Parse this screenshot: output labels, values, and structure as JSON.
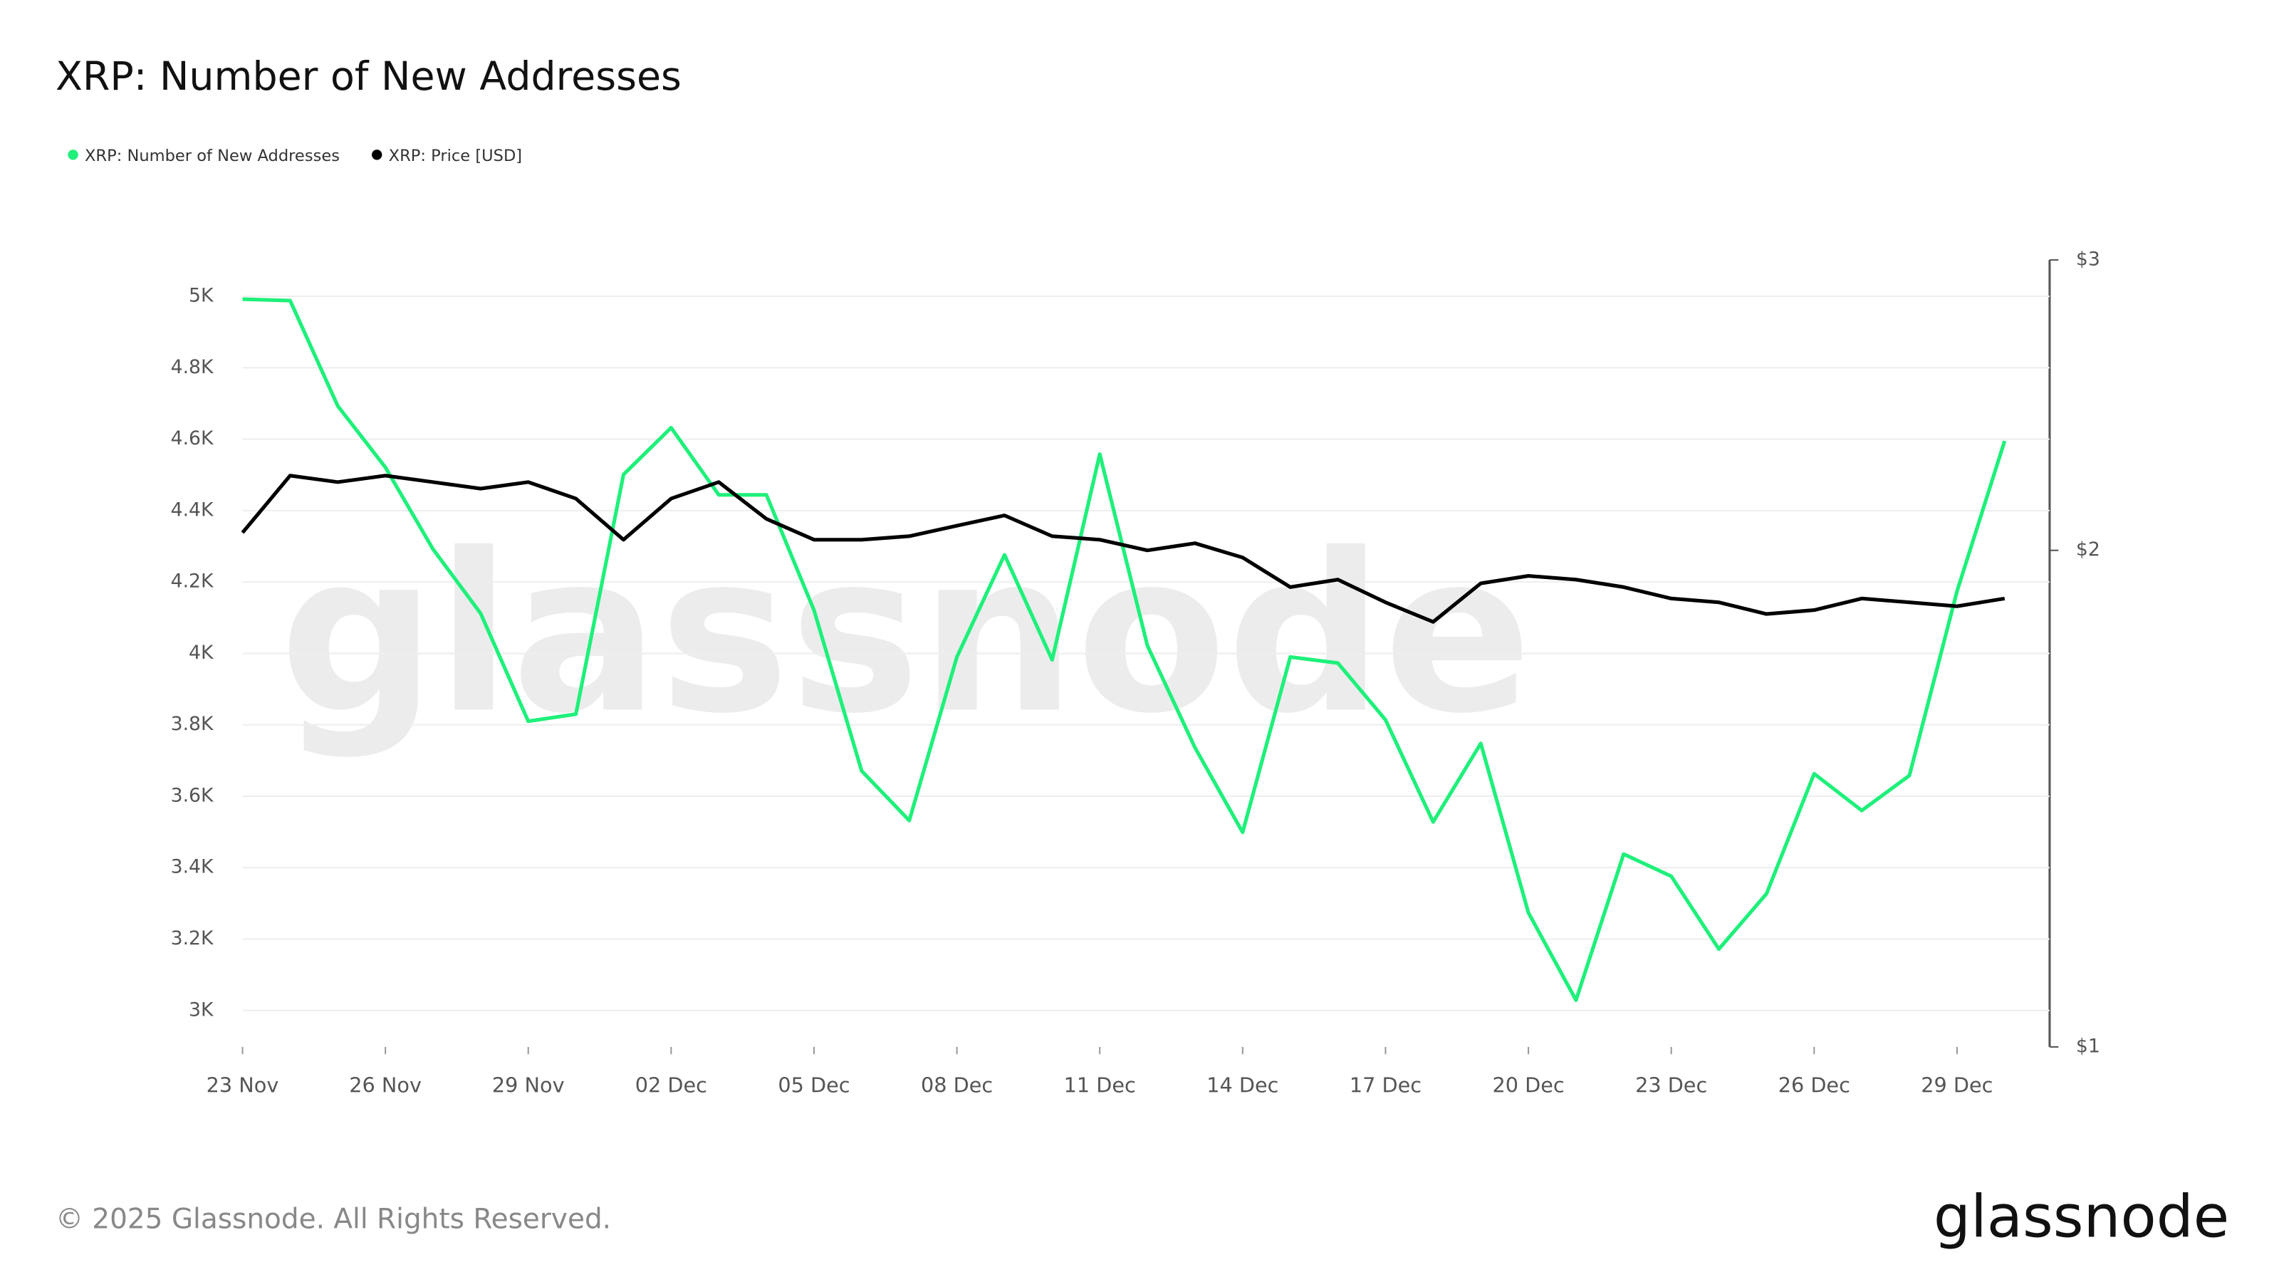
{
  "chart_data": {
    "type": "line",
    "title": "XRP: Number of New Addresses",
    "categories": [
      "23 Nov",
      null,
      null,
      "26 Nov",
      null,
      null,
      "29 Nov",
      null,
      null,
      "02 Dec",
      null,
      null,
      "05 Dec",
      null,
      null,
      "08 Dec",
      null,
      null,
      "11 Dec",
      null,
      null,
      "14 Dec",
      null,
      null,
      "17 Dec",
      null,
      null,
      "20 Dec",
      null,
      null,
      "23 Dec",
      null,
      null,
      "26 Dec",
      null,
      null,
      "29 Dec",
      null
    ],
    "series": [
      {
        "name": "XRP: Number of New Addresses",
        "color": "#1ef07a",
        "values": [
          4992,
          4988,
          4693,
          4521,
          4292,
          4112,
          3810,
          3830,
          4501,
          4632,
          4444,
          4444,
          4121,
          3671,
          3532,
          3990,
          4276,
          3982,
          4558,
          4022,
          3736,
          3499,
          3990,
          3973,
          3814,
          3528,
          3748,
          3274,
          3029,
          3438,
          3376,
          3172,
          3327,
          3663,
          3560,
          3658,
          4174,
          4595
        ]
      },
      {
        "name": "XRP: Price [USD]",
        "color": "#000000",
        "axis": "y2",
        "values": [
          2.05,
          2.22,
          2.2,
          2.22,
          2.2,
          2.18,
          2.2,
          2.15,
          2.03,
          2.15,
          2.2,
          2.09,
          2.03,
          2.03,
          2.04,
          2.07,
          2.1,
          2.04,
          2.03,
          2.0,
          2.02,
          1.98,
          1.9,
          1.92,
          1.86,
          1.81,
          1.91,
          1.93,
          1.92,
          1.9,
          1.87,
          1.86,
          1.83,
          1.84,
          1.87,
          1.86,
          1.85,
          1.87
        ]
      }
    ],
    "ylim": [
      2898,
      5102
    ],
    "yticks": [
      {
        "value": 3000,
        "label": "3K"
      },
      {
        "value": 3200,
        "label": "3.2K"
      },
      {
        "value": 3400,
        "label": "3.4K"
      },
      {
        "value": 3600,
        "label": "3.6K"
      },
      {
        "value": 3800,
        "label": "3.8K"
      },
      {
        "value": 4000,
        "label": "4K"
      },
      {
        "value": 4200,
        "label": "4.2K"
      },
      {
        "value": 4400,
        "label": "4.4K"
      },
      {
        "value": 4600,
        "label": "4.6K"
      },
      {
        "value": 4800,
        "label": "4.8K"
      },
      {
        "value": 5000,
        "label": "5K"
      }
    ],
    "y2lim": [
      1,
      3
    ],
    "y2scale": "log",
    "y2ticks": [
      {
        "value": 1,
        "label": "$1"
      },
      {
        "value": 2,
        "label": "$2"
      },
      {
        "value": 3,
        "label": "$3"
      }
    ],
    "grid": true,
    "watermark": "glassnode"
  },
  "footer": "© 2025 Glassnode. All Rights Reserved.",
  "logo": "glassnode"
}
